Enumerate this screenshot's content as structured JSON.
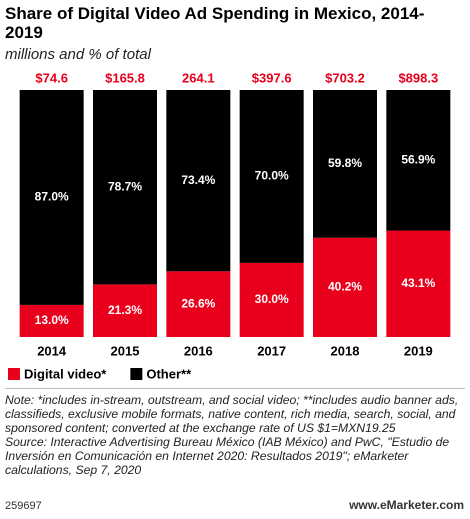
{
  "chart_data": {
    "type": "stacked_bar_percent",
    "title": "Share of Digital Video Ad Spending in Mexico, 2014-2019",
    "subtitle": "millions and % of total",
    "categories": [
      "2014",
      "2015",
      "2016",
      "2017",
      "2018",
      "2019"
    ],
    "series": [
      {
        "name": "Digital video*",
        "color": "#e8001c",
        "values": [
          13.0,
          21.3,
          26.6,
          30.0,
          40.2,
          43.1
        ],
        "value_labels": [
          "13.0%",
          "21.3%",
          "26.6%",
          "30.0%",
          "40.2%",
          "43.1%"
        ]
      },
      {
        "name": "Other**",
        "color": "#000000",
        "values": [
          87.0,
          78.7,
          73.4,
          70.0,
          59.8,
          56.9
        ],
        "value_labels": [
          "87.0%",
          "78.7%",
          "73.4%",
          "70.0%",
          "59.8%",
          "56.9%"
        ]
      }
    ],
    "totals": {
      "values": [
        74.6,
        165.8,
        264.1,
        397.6,
        703.2,
        898.3
      ],
      "value_labels": [
        "$74.6",
        "$165.8",
        "264.1",
        "$397.6",
        "$703.2",
        "$898.3"
      ],
      "color": "#e8001c"
    },
    "ylim": [
      0,
      100
    ],
    "note": "Note: *includes in-stream, outstream, and social video; **includes audio banner ads, classifieds, exclusive mobile formats, native content, rich media, search, social, and sponsored content; converted at the exchange rate of US $1=MXN19.25",
    "source": "Source: Interactive Advertising Bureau México (IAB México) and PwC, \"Estudio de Inversión en Comunicación en Internet 2020: Resultados 2019\"; eMarketer calculations, Sep 7, 2020",
    "footer_id": "259697",
    "footer_site": "www.eMarketer.com"
  }
}
